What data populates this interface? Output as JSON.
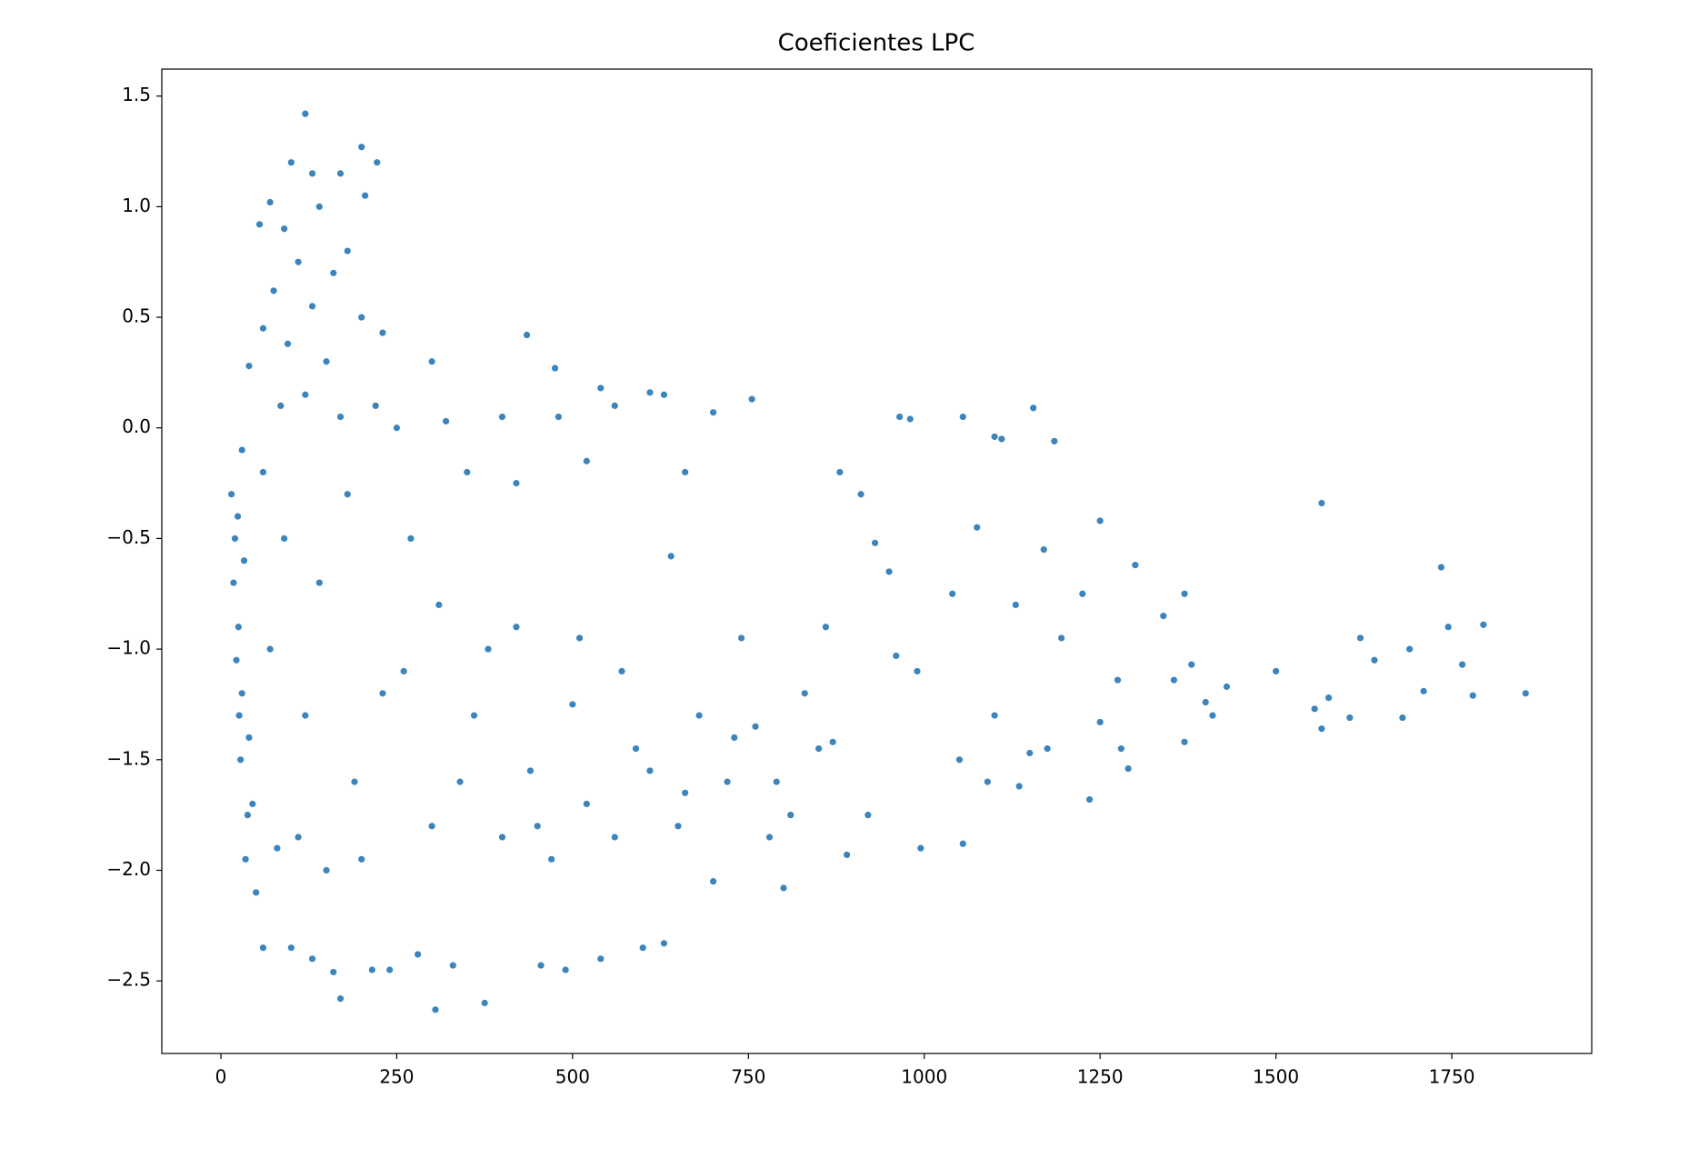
{
  "chart_data": {
    "type": "scatter",
    "title": "Coeficientes LPC",
    "color": "#3c84bc",
    "xlim": [
      -84,
      1949
    ],
    "ylim": [
      -2.828,
      1.622
    ],
    "xticks": [
      0,
      250,
      500,
      750,
      1000,
      1250,
      1500,
      1750
    ],
    "yticks": [
      {
        "value": -2.5,
        "label": "−2.5"
      },
      {
        "value": -2.0,
        "label": "−2.0"
      },
      {
        "value": -1.5,
        "label": "−1.5"
      },
      {
        "value": -1.0,
        "label": "−1.0"
      },
      {
        "value": -0.5,
        "label": "−0.5"
      },
      {
        "value": 0,
        "label": "0.0"
      },
      0.5,
      {
        "value": 1,
        "label": "1.0"
      },
      1.5
    ],
    "x": [
      120,
      200,
      222,
      100,
      130,
      170,
      205,
      70,
      140,
      90,
      55,
      180,
      110,
      160,
      75,
      130,
      230,
      200,
      60,
      95,
      150,
      40,
      300,
      435,
      475,
      540,
      610,
      630,
      755,
      1055,
      1155,
      965,
      980,
      1100,
      1110,
      1185,
      700,
      560,
      480,
      400,
      320,
      250,
      220,
      85,
      30,
      120,
      170,
      60,
      180,
      350,
      420,
      520,
      660,
      880,
      910,
      1565,
      1250,
      1300,
      1370,
      1735,
      1745,
      1795,
      1855,
      1780,
      1765,
      1710,
      1680,
      1690,
      1640,
      1620,
      1605,
      1575,
      1565,
      1555,
      1500,
      1430,
      1400,
      1410,
      1380,
      1370,
      1355,
      1340,
      1290,
      1280,
      1275,
      1250,
      1235,
      1225,
      1195,
      1170,
      1175,
      1150,
      1135,
      1130,
      1100,
      1090,
      1075,
      1050,
      1055,
      1040,
      995,
      990,
      960,
      950,
      930,
      920,
      890,
      870,
      860,
      830,
      810,
      790,
      800,
      760,
      740,
      720,
      700,
      680,
      650,
      640,
      630,
      600,
      590,
      570,
      540,
      520,
      500,
      490,
      470,
      455,
      440,
      420,
      400,
      375,
      360,
      330,
      305,
      300,
      280,
      260,
      240,
      215,
      200,
      170,
      160,
      150,
      130,
      110,
      100,
      80,
      60,
      50,
      45,
      40,
      35,
      30,
      25,
      20,
      18,
      22,
      28,
      15,
      24,
      33,
      38,
      26,
      70,
      90,
      120,
      140,
      190,
      230,
      270,
      310,
      340,
      380,
      450,
      510,
      560,
      610,
      660,
      730,
      780,
      850
    ],
    "values": [
      1.42,
      1.27,
      1.2,
      1.2,
      1.15,
      1.15,
      1.05,
      1.02,
      1.0,
      0.9,
      0.92,
      0.8,
      0.75,
      0.7,
      0.62,
      0.55,
      0.43,
      0.5,
      0.45,
      0.38,
      0.3,
      0.28,
      0.3,
      0.42,
      0.27,
      0.18,
      0.16,
      0.15,
      0.13,
      0.05,
      0.09,
      0.05,
      0.04,
      -0.04,
      -0.05,
      -0.06,
      0.07,
      0.1,
      0.05,
      0.05,
      0.03,
      0.0,
      0.1,
      0.1,
      -0.1,
      0.15,
      0.05,
      -0.2,
      -0.3,
      -0.2,
      -0.25,
      -0.15,
      -0.2,
      -0.2,
      -0.3,
      -0.34,
      -0.42,
      -0.62,
      -0.75,
      -0.63,
      -0.9,
      -0.89,
      -1.2,
      -1.21,
      -1.07,
      -1.19,
      -1.31,
      -1.0,
      -1.05,
      -0.95,
      -1.31,
      -1.22,
      -1.36,
      -1.27,
      -1.1,
      -1.17,
      -1.24,
      -1.3,
      -1.07,
      -1.42,
      -1.14,
      -0.85,
      -1.54,
      -1.45,
      -1.14,
      -1.33,
      -1.68,
      -0.75,
      -0.95,
      -0.55,
      -1.45,
      -1.47,
      -1.62,
      -0.8,
      -1.3,
      -1.6,
      -0.45,
      -1.5,
      -1.88,
      -0.75,
      -1.9,
      -1.1,
      -1.03,
      -0.65,
      -0.52,
      -1.75,
      -1.93,
      -1.42,
      -0.9,
      -1.2,
      -1.75,
      -1.6,
      -2.08,
      -1.35,
      -0.95,
      -1.6,
      -2.05,
      -1.3,
      -1.8,
      -0.58,
      -2.33,
      -2.35,
      -1.45,
      -1.1,
      -2.4,
      -1.7,
      -1.25,
      -2.45,
      -1.95,
      -2.43,
      -1.55,
      -0.9,
      -1.85,
      -2.6,
      -1.3,
      -2.43,
      -2.63,
      -1.8,
      -2.38,
      -1.1,
      -2.45,
      -2.45,
      -1.95,
      -2.58,
      -2.46,
      -2.0,
      -2.4,
      -1.85,
      -2.35,
      -1.9,
      -2.35,
      -2.1,
      -1.7,
      -1.4,
      -1.95,
      -1.2,
      -0.9,
      -0.5,
      -0.7,
      -1.05,
      -1.5,
      -0.3,
      -0.4,
      -0.6,
      -1.75,
      -1.3,
      -1.0,
      -0.5,
      -1.3,
      -0.7,
      -1.6,
      -1.2,
      -0.5,
      -0.8,
      -1.6,
      -1.0,
      -1.8,
      -0.95,
      -1.85,
      -1.55,
      -1.65,
      -1.4,
      -1.85,
      -1.45
    ]
  }
}
